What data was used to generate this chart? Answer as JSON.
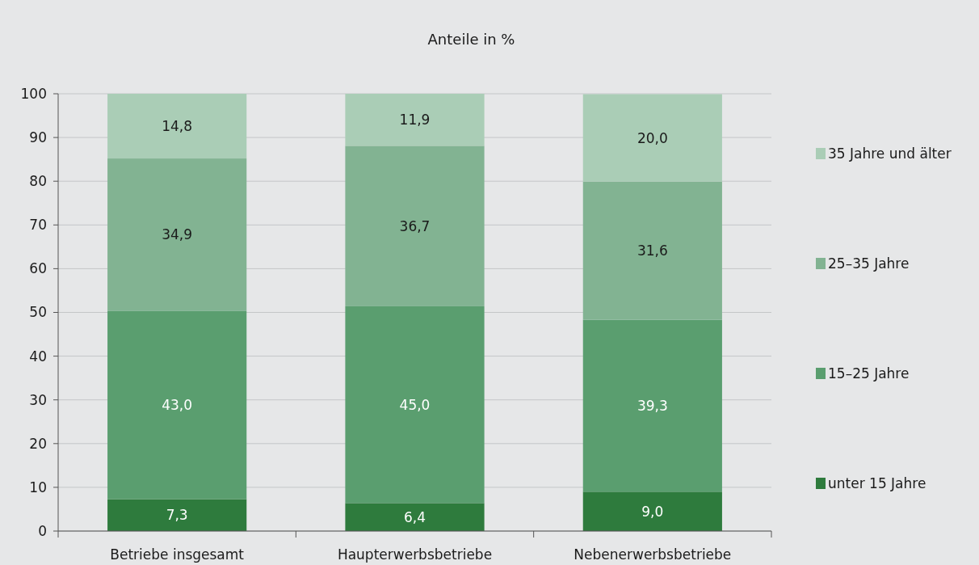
{
  "chart_data": {
    "type": "bar",
    "title": "Anteile in %",
    "categories": [
      "Betriebe insgesamt",
      "Haupterwerbsbetriebe",
      "Nebenerwerbsbetriebe"
    ],
    "stacked": true,
    "ylim": [
      0,
      100
    ],
    "yticks": [
      0,
      10,
      20,
      30,
      40,
      50,
      60,
      70,
      80,
      90,
      100
    ],
    "grid": "y",
    "legend": "right",
    "series": [
      {
        "name": "unter 15 Jahre",
        "color": "#2e7b3d",
        "values": [
          7.3,
          6.4,
          9.0
        ],
        "value_labels": [
          "7,3",
          "6,4",
          "9,0"
        ]
      },
      {
        "name": "15–25 Jahre",
        "color": "#5a9e6f",
        "values": [
          43.0,
          45.0,
          39.3
        ],
        "value_labels": [
          "43,0",
          "45,0",
          "39,3"
        ]
      },
      {
        "name": "25–35 Jahre",
        "color": "#82b392",
        "values": [
          34.9,
          36.7,
          31.6
        ],
        "value_labels": [
          "34,9",
          "36,7",
          "31,6"
        ]
      },
      {
        "name": "35 Jahre und älter",
        "color": "#aacdb6",
        "values": [
          14.8,
          11.9,
          20.0
        ],
        "value_labels": [
          "14,8",
          "11,9",
          "20,0"
        ]
      }
    ]
  }
}
